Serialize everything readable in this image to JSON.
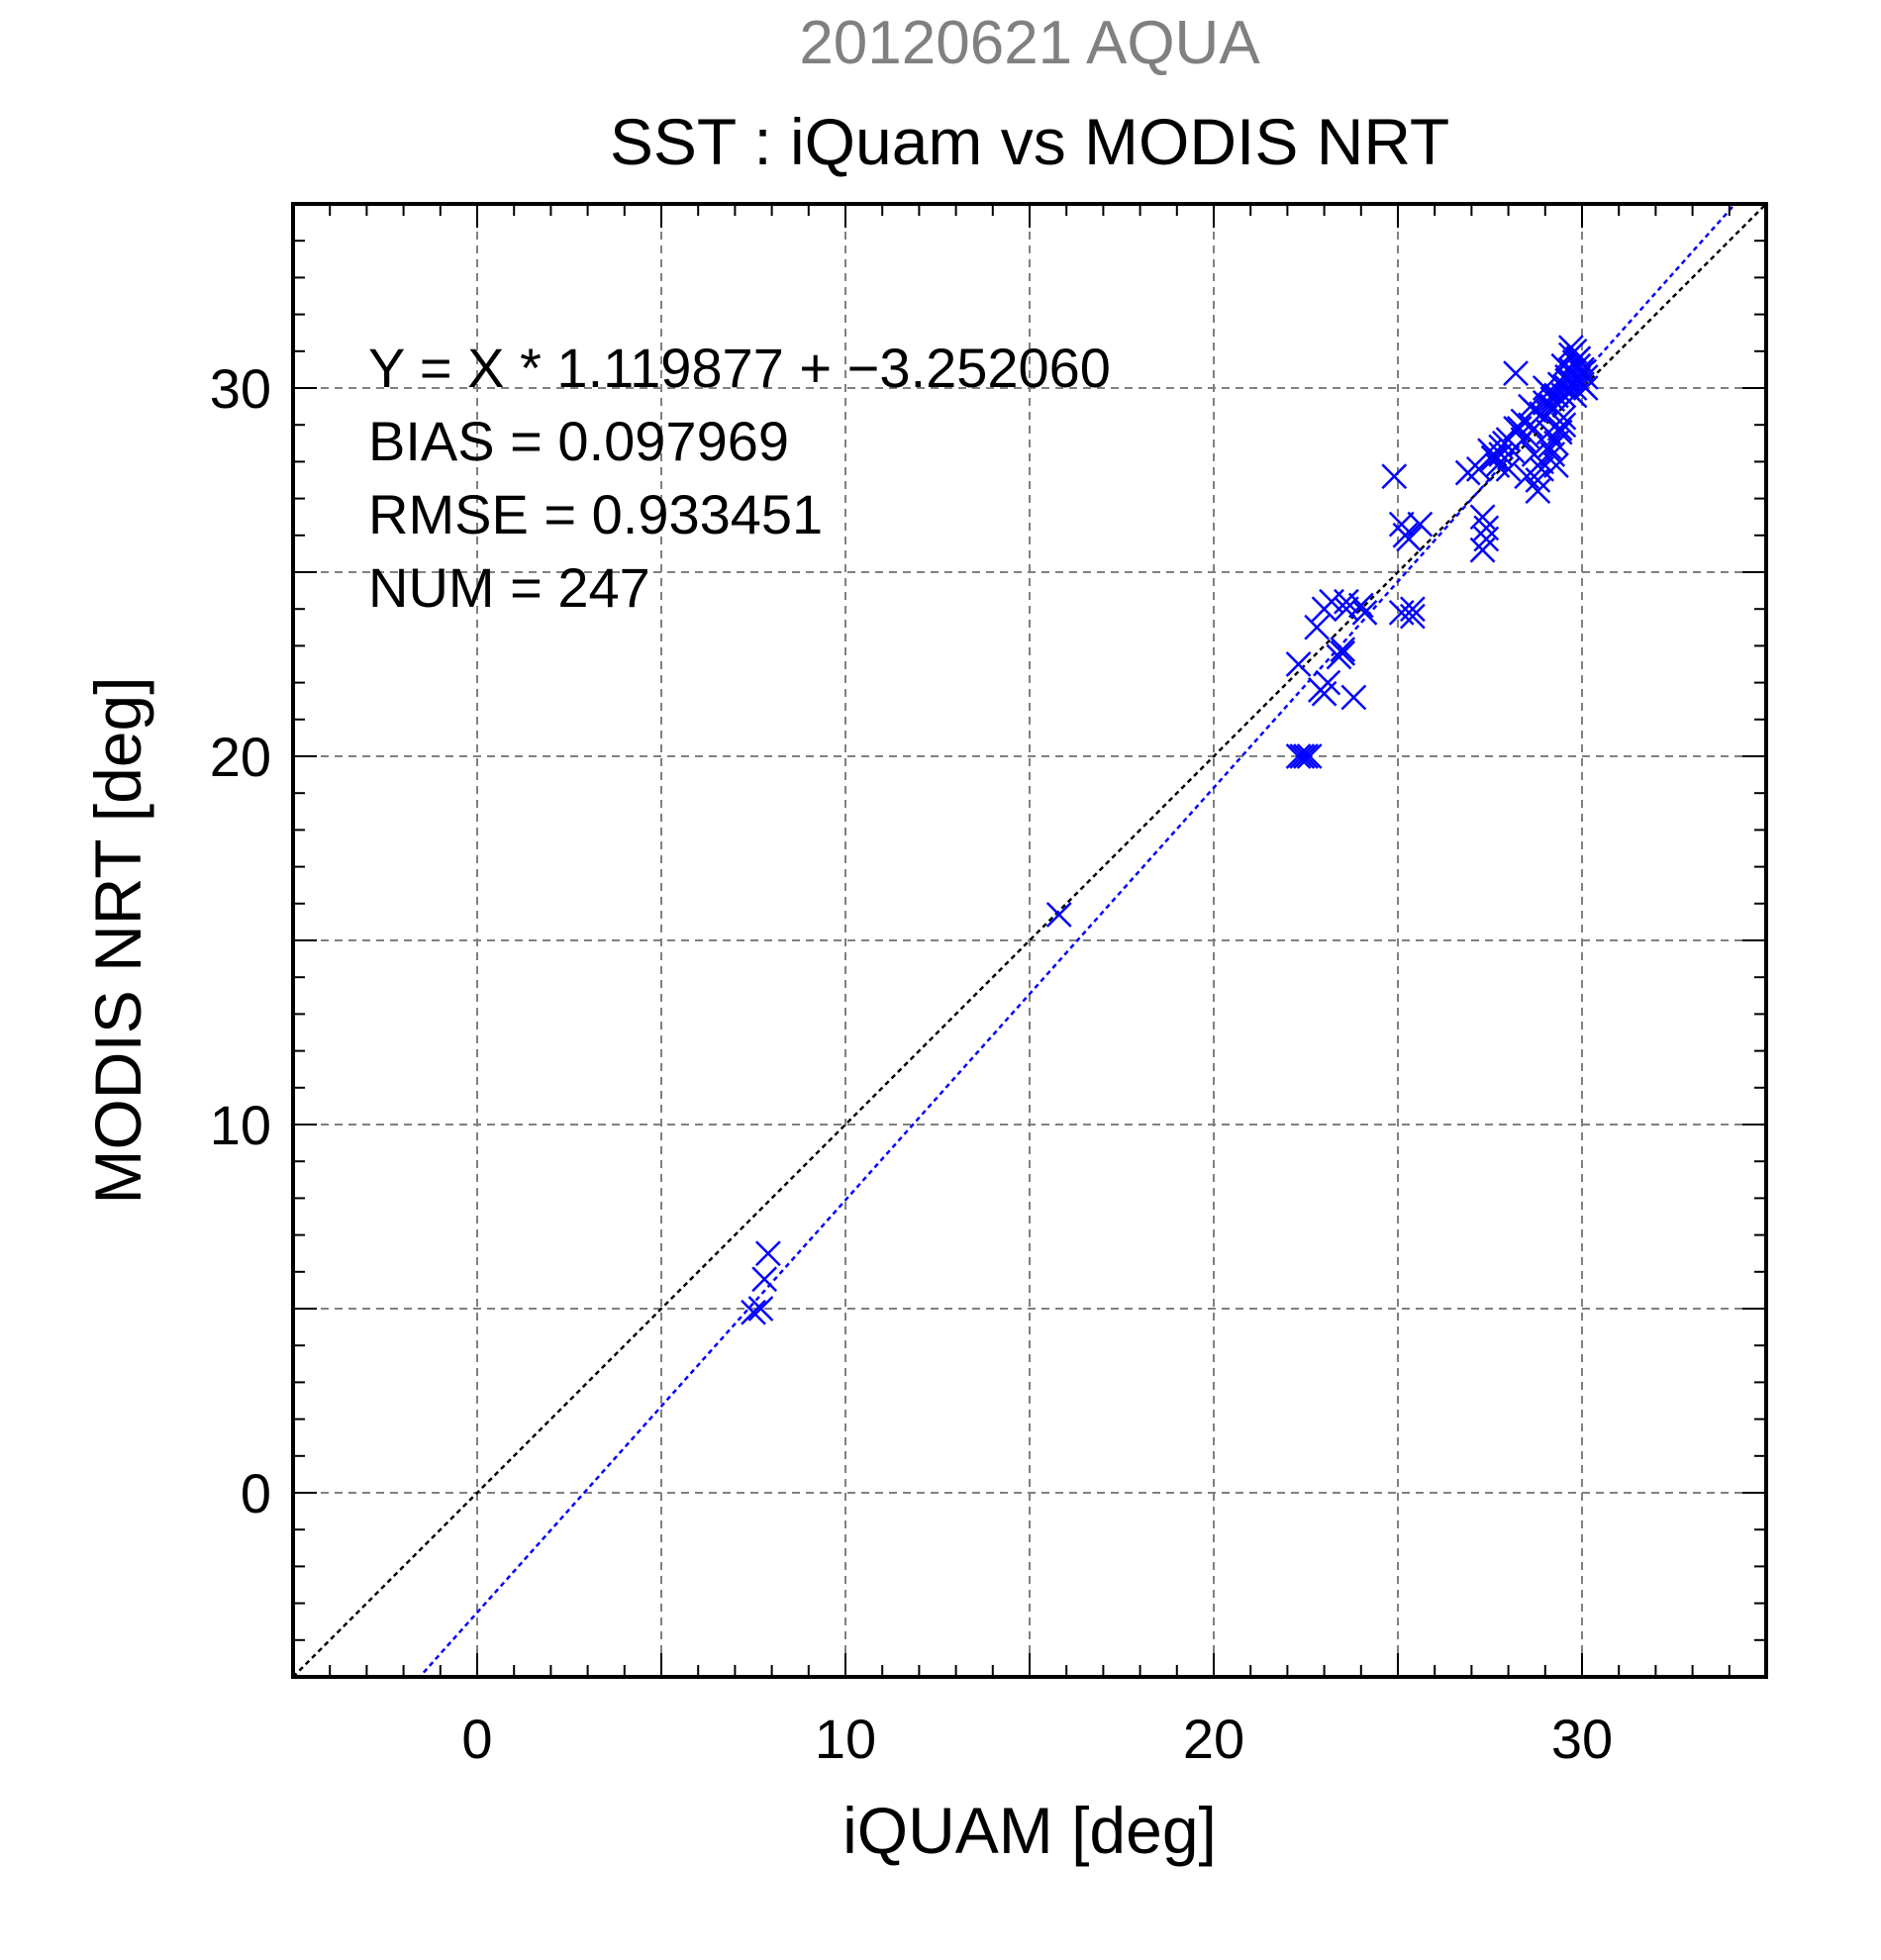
{
  "chart_data": {
    "type": "scatter",
    "suptitle": "20120621 AQUA",
    "title": "SST : iQuam vs MODIS NRT",
    "xlabel": "iQUAM [deg]",
    "ylabel": "MODIS NRT [deg]",
    "xlim": [
      -5,
      35
    ],
    "ylim": [
      -5,
      35
    ],
    "major_ticks": [
      0,
      10,
      20,
      30
    ],
    "minor_tick_step": 1,
    "grid_step": 5,
    "grid": true,
    "annotations": [
      "Y = X * 1.119877 + −3.252060",
      "BIAS = 0.097969",
      "RMSE = 0.933451",
      "NUM = 247"
    ],
    "fit_line": {
      "slope": 1.119877,
      "intercept": -3.25206
    },
    "identity_line": true,
    "colors": {
      "marker": "#0000ff",
      "fit": "#0000ff",
      "identity": "#000000",
      "grid": "#808080",
      "suptitle": "#808080",
      "text": "#000000"
    },
    "series": [
      {
        "marker": "x",
        "x": [
          7.5,
          7.7,
          7.8,
          7.9,
          15.8,
          22.3,
          22.4,
          22.5,
          22.6,
          22.3,
          22.8,
          23.0,
          23.2,
          22.9,
          23.4,
          23.5,
          23.5,
          23.6,
          23.6,
          23.8,
          24.0,
          24.1,
          23.0,
          23.1,
          24.9,
          25.1,
          25.2,
          25.3,
          25.1,
          25.4,
          25.4,
          25.6,
          26.9,
          27.2,
          27.3,
          27.3,
          27.4,
          27.4,
          27.5,
          27.6,
          27.7,
          27.8,
          27.9,
          28.0,
          28.1,
          28.2,
          28.3,
          28.4,
          28.5,
          28.6,
          28.7,
          28.8,
          28.9,
          29.0,
          29.1,
          29.2,
          29.3,
          29.4,
          29.5,
          29.6,
          29.7,
          29.8,
          29.9,
          30.0,
          30.1,
          29.5,
          29.6,
          29.7,
          29.8,
          29.9,
          30.0,
          29.3,
          29.4,
          29.5,
          28.9,
          29.0,
          29.1,
          29.2,
          28.8,
          28.9,
          28.7,
          29.0,
          29.2,
          28.2,
          28.4,
          28.5,
          28.6,
          27.6,
          27.8,
          28.0,
          29.6,
          29.7,
          29.8,
          29.9,
          30.0,
          30.1,
          29.7,
          29.9,
          29.5,
          29.4,
          29.6,
          29.8,
          30.0,
          29.3,
          29.1
        ],
        "y": [
          4.9,
          5.0,
          5.8,
          6.5,
          15.7,
          20.0,
          20.0,
          20.0,
          20.0,
          22.5,
          23.5,
          24.0,
          24.2,
          21.8,
          22.7,
          22.8,
          22.9,
          24.2,
          24.0,
          21.6,
          24.1,
          23.9,
          21.7,
          22.0,
          27.6,
          26.3,
          26.0,
          25.9,
          23.9,
          24.0,
          23.8,
          26.3,
          27.7,
          27.8,
          26.5,
          25.6,
          26.2,
          25.9,
          28.3,
          28.1,
          27.9,
          28.2,
          28.5,
          27.8,
          28.3,
          30.4,
          28.9,
          28.6,
          27.6,
          29.0,
          28.2,
          27.2,
          27.8,
          29.2,
          28.4,
          29.5,
          29.8,
          30.1,
          30.6,
          30.3,
          30.5,
          30.0,
          30.2,
          30.4,
          30.3,
          29.8,
          30.0,
          30.9,
          30.7,
          30.8,
          30.5,
          28.5,
          28.8,
          29.0,
          29.3,
          29.6,
          29.9,
          28.2,
          27.5,
          28.0,
          29.4,
          30.0,
          29.7,
          28.9,
          29.1,
          28.7,
          29.5,
          28.1,
          28.4,
          28.6,
          30.2,
          29.9,
          31.0,
          30.6,
          30.4,
          30.0,
          31.1,
          30.8,
          29.2,
          28.9,
          30.3,
          29.8,
          30.1,
          27.9,
          28.8
        ]
      }
    ]
  }
}
